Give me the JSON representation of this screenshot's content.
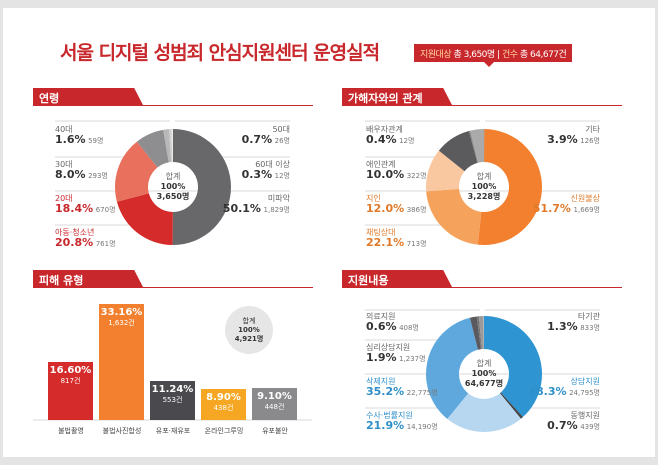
{
  "title": "서울 디지털 성범죄 안심지원센터 운영실적",
  "badge": {
    "label1": "지원대상",
    "value1": "총 3,650명",
    "label2": "건수",
    "value2": "총 64,677건"
  },
  "colors": {
    "accent": "#c8282c"
  },
  "chart_data": [
    {
      "type": "pie",
      "title": "연령",
      "center": {
        "label": "합계",
        "percent": "100%",
        "total": "3,650명"
      },
      "series": [
        {
          "name": "미파악",
          "percent": "50.1%",
          "count": "1,829명",
          "value": 50.1,
          "color": "#68686b"
        },
        {
          "name": "아동·청소년",
          "percent": "20.8%",
          "count": "761명",
          "value": 20.8,
          "color": "#d52b2b"
        },
        {
          "name": "20대",
          "percent": "18.4%",
          "count": "670명",
          "value": 18.4,
          "color": "#e8705c"
        },
        {
          "name": "30대",
          "percent": "8.0%",
          "count": "293명",
          "value": 8.0,
          "color": "#8e8e90"
        },
        {
          "name": "40대",
          "percent": "1.6%",
          "count": "59명",
          "value": 1.6,
          "color": "#b8b8b8"
        },
        {
          "name": "50대",
          "percent": "0.7%",
          "count": "26명",
          "value": 0.7,
          "color": "#d0d0d0"
        },
        {
          "name": "60대 이상",
          "percent": "0.3%",
          "count": "12명",
          "value": 0.3,
          "color": "#e0e0e0"
        }
      ]
    },
    {
      "type": "pie",
      "title": "가해자와의 관계",
      "center": {
        "label": "합계",
        "percent": "100%",
        "total": "3,228명"
      },
      "series": [
        {
          "name": "신원불상",
          "percent": "51.7%",
          "count": "1,669명",
          "value": 51.7,
          "color": "#f2802e"
        },
        {
          "name": "채팅상대",
          "percent": "22.1%",
          "count": "713명",
          "value": 22.1,
          "color": "#f5a25c"
        },
        {
          "name": "지인",
          "percent": "12.0%",
          "count": "386명",
          "value": 12.0,
          "color": "#fac8a0"
        },
        {
          "name": "애인관계",
          "percent": "10.0%",
          "count": "322명",
          "value": 10.0,
          "color": "#5b5b5e"
        },
        {
          "name": "배우자관계",
          "percent": "0.4%",
          "count": "12명",
          "value": 0.4,
          "color": "#888"
        },
        {
          "name": "기타",
          "percent": "3.9%",
          "count": "126명",
          "value": 3.9,
          "color": "#aaaaaa"
        }
      ]
    },
    {
      "type": "bar",
      "title": "피해 유형",
      "total": {
        "label": "합계",
        "percent": "100%",
        "total": "4,921명"
      },
      "categories": [
        "불법촬영",
        "불법사진합성",
        "유포·재유포",
        "온라인그루밍",
        "유포불안"
      ],
      "values": [
        16.6,
        33.16,
        11.24,
        8.9,
        9.1
      ],
      "percent_labels": [
        "16.60%",
        "33.16%",
        "11.24%",
        "8.90%",
        "9.10%"
      ],
      "counts": [
        "817건",
        "1,632건",
        "553건",
        "438건",
        "448건"
      ],
      "bar_colors": [
        "#d52b2b",
        "#f2802e",
        "#4a4a4e",
        "#f5a623",
        "#8a8a8c"
      ]
    },
    {
      "type": "pie",
      "title": "지원내용",
      "center": {
        "label": "합계",
        "percent": "100%",
        "total": "64,677명"
      },
      "series": [
        {
          "name": "상담지원",
          "percent": "38.3%",
          "count": "24,795명",
          "value": 38.3,
          "color": "#2f94d2"
        },
        {
          "name": "동행지원",
          "percent": "0.7%",
          "count": "439명",
          "value": 0.7,
          "color": "#444"
        },
        {
          "name": "수사·법률지원",
          "percent": "21.9%",
          "count": "14,190명",
          "value": 21.9,
          "color": "#b6d7ef"
        },
        {
          "name": "삭제지원",
          "percent": "35.2%",
          "count": "22,775명",
          "value": 35.2,
          "color": "#5ea8de"
        },
        {
          "name": "심리상담지원",
          "percent": "1.9%",
          "count": "1,237명",
          "value": 1.9,
          "color": "#5a5a5e"
        },
        {
          "name": "의료지원",
          "percent": "0.6%",
          "count": "408명",
          "value": 0.6,
          "color": "#777"
        },
        {
          "name": "타기관",
          "percent": "1.3%",
          "count": "833명",
          "value": 1.3,
          "color": "#9a9a9a"
        }
      ]
    }
  ]
}
